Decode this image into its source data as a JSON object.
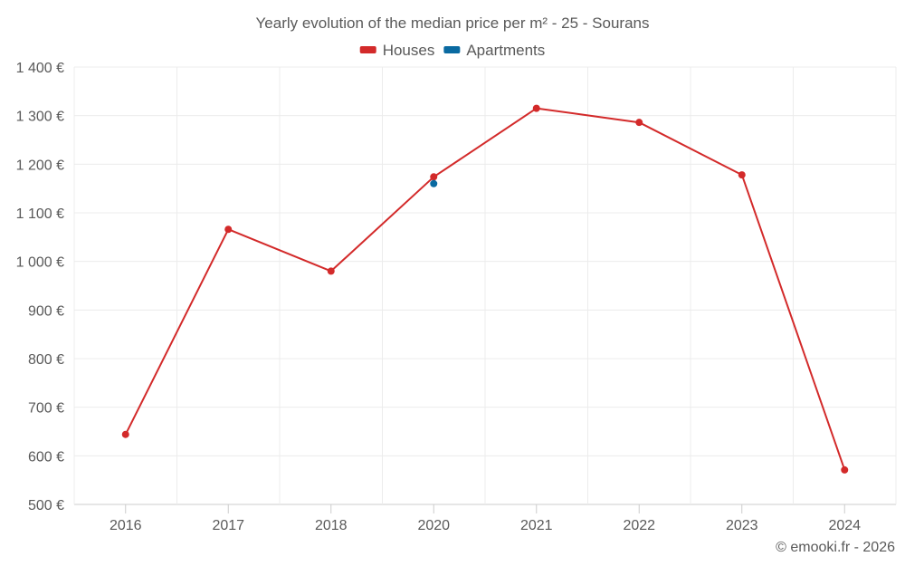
{
  "colors": {
    "houses": "#d32a2a",
    "apartments": "#0a6aa1",
    "grid": "#ececec",
    "axis": "#cccccc",
    "text": "#595959"
  },
  "chart_data": {
    "type": "line",
    "title": "Yearly evolution of the median price per m² - 25 - Sourans",
    "categories": [
      "2016",
      "2017",
      "2018",
      "2020",
      "2021",
      "2022",
      "2023",
      "2024"
    ],
    "series": [
      {
        "name": "Houses",
        "color": "#d32a2a",
        "values": [
          644,
          1066,
          980,
          1174,
          1315,
          1286,
          1178,
          571
        ]
      },
      {
        "name": "Apartments",
        "color": "#0a6aa1",
        "values": [
          null,
          null,
          null,
          1160,
          null,
          null,
          null,
          null
        ]
      }
    ],
    "ylim": [
      500,
      1400
    ],
    "yticks": [
      500,
      600,
      700,
      800,
      900,
      1000,
      1100,
      1200,
      1300,
      1400
    ],
    "ytick_labels": [
      "500 €",
      "600 €",
      "700 €",
      "800 €",
      "900 €",
      "1 000 €",
      "1 100 €",
      "1 200 €",
      "1 300 €",
      "1 400 €"
    ],
    "xlabel": "",
    "ylabel": "",
    "legend_position": "top-center",
    "grid": true
  },
  "credit": "© emooki.fr - 2026"
}
